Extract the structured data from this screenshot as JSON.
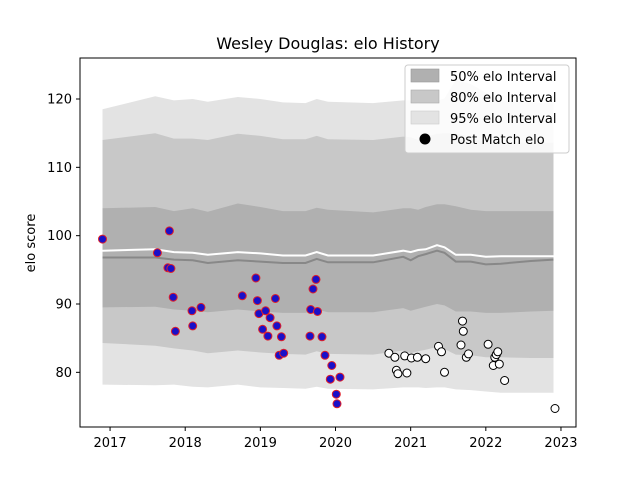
{
  "chart_data": {
    "type": "scatter",
    "title": "Wesley Douglas: elo History",
    "xlabel": "",
    "ylabel": "elo score",
    "xlim": [
      2016.6,
      2023.2
    ],
    "ylim": [
      72,
      126
    ],
    "xticks": [
      2017,
      2018,
      2019,
      2020,
      2021,
      2022,
      2023
    ],
    "yticks": [
      80,
      90,
      100,
      110,
      120
    ],
    "grid": false,
    "legend_position": "top-right",
    "legend": {
      "band50": "50% elo Interval",
      "band80": "80% elo Interval",
      "band95": "95% elo Interval",
      "points": "Post Match elo"
    },
    "colors": {
      "band50": "#b0b0b0",
      "band80": "#c8c8c8",
      "band95": "#e3e3e3",
      "median_line": "#888888",
      "mean_line": "#ffffff",
      "highlight_fill": "#1a10c8",
      "highlight_edge": "#e0202a",
      "recent_fill": "#ffffff",
      "recent_edge": "#000000"
    },
    "bands": {
      "x": [
        2016.9,
        2017.6,
        2017.85,
        2018.1,
        2018.3,
        2018.7,
        2019.0,
        2019.3,
        2019.6,
        2019.75,
        2019.9,
        2020.5,
        2020.9,
        2021.0,
        2021.1,
        2021.2,
        2021.35,
        2021.45,
        2021.6,
        2021.8,
        2022.0,
        2022.2,
        2022.6,
        2022.9
      ],
      "p95_hi": [
        118.5,
        120.4,
        119.8,
        120.0,
        119.6,
        120.3,
        120.0,
        119.5,
        119.4,
        120.0,
        119.6,
        119.4,
        119.8,
        119.8,
        119.3,
        119.8,
        119.7,
        120.1,
        122.8,
        122.2,
        120.9,
        119.7,
        119.5,
        119.4
      ],
      "p80_hi": [
        114.0,
        115.0,
        114.2,
        114.2,
        114.0,
        114.9,
        114.6,
        114.1,
        114.1,
        114.6,
        114.1,
        114.0,
        114.5,
        114.4,
        114.0,
        114.5,
        114.9,
        115.0,
        115.0,
        114.4,
        113.6,
        113.7,
        113.6,
        113.6
      ],
      "p50_hi": [
        104.0,
        104.2,
        103.6,
        104.0,
        103.5,
        104.7,
        104.2,
        103.6,
        103.6,
        104.1,
        103.8,
        103.4,
        104.0,
        104.0,
        103.8,
        104.2,
        104.6,
        104.6,
        104.3,
        103.8,
        103.6,
        103.6,
        103.6,
        103.6
      ],
      "mean": [
        97.8,
        98.0,
        97.6,
        97.5,
        97.2,
        97.6,
        97.4,
        97.1,
        97.1,
        97.6,
        97.1,
        97.1,
        97.8,
        97.6,
        97.9,
        98.0,
        98.6,
        98.3,
        97.2,
        97.2,
        96.9,
        97.0,
        97.0,
        97.0
      ],
      "median": [
        96.8,
        96.8,
        96.5,
        96.4,
        96.0,
        96.4,
        96.2,
        96.0,
        96.0,
        96.6,
        96.1,
        96.1,
        96.9,
        96.4,
        97.0,
        97.3,
        97.8,
        97.5,
        96.2,
        96.2,
        95.8,
        95.9,
        96.3,
        96.5
      ],
      "p50_lo": [
        89.5,
        89.6,
        89.2,
        89.0,
        88.8,
        89.2,
        88.9,
        88.7,
        88.7,
        89.2,
        88.8,
        88.8,
        89.4,
        89.0,
        89.3,
        89.6,
        90.0,
        89.8,
        88.9,
        88.9,
        88.7,
        88.7,
        88.9,
        89.0
      ],
      "p80_lo": [
        84.3,
        83.9,
        83.5,
        83.2,
        82.8,
        83.2,
        82.9,
        82.7,
        82.6,
        83.1,
        82.7,
        82.6,
        83.2,
        82.8,
        83.1,
        83.3,
        83.7,
        83.4,
        82.6,
        82.5,
        82.2,
        82.2,
        82.1,
        82.1
      ],
      "p95_lo": [
        78.2,
        78.1,
        78.2,
        77.9,
        77.8,
        78.2,
        77.8,
        77.7,
        77.6,
        77.9,
        77.6,
        77.5,
        77.8,
        77.8,
        77.8,
        77.7,
        77.8,
        77.8,
        77.5,
        77.4,
        77.2,
        77.0,
        77.0,
        77.0
      ]
    },
    "series": [
      {
        "name": "Post Match elo",
        "style": "highlight",
        "points": [
          [
            2016.9,
            99.5
          ],
          [
            2017.63,
            97.5
          ],
          [
            2017.77,
            95.3
          ],
          [
            2017.79,
            100.7
          ],
          [
            2017.81,
            95.2
          ],
          [
            2017.84,
            91.0
          ],
          [
            2017.87,
            86.0
          ],
          [
            2018.09,
            89.0
          ],
          [
            2018.1,
            86.8
          ],
          [
            2018.21,
            89.5
          ],
          [
            2018.76,
            91.2
          ],
          [
            2018.94,
            93.8
          ],
          [
            2018.96,
            90.5
          ],
          [
            2018.98,
            88.6
          ],
          [
            2019.03,
            86.3
          ],
          [
            2019.07,
            89.0
          ],
          [
            2019.1,
            85.3
          ],
          [
            2019.13,
            88.0
          ],
          [
            2019.2,
            90.8
          ],
          [
            2019.22,
            86.8
          ],
          [
            2019.25,
            82.5
          ],
          [
            2019.28,
            85.2
          ],
          [
            2019.31,
            82.8
          ],
          [
            2019.66,
            85.3
          ],
          [
            2019.67,
            89.2
          ],
          [
            2019.7,
            92.2
          ],
          [
            2019.74,
            93.6
          ],
          [
            2019.76,
            88.9
          ],
          [
            2019.82,
            85.2
          ],
          [
            2019.86,
            82.5
          ],
          [
            2019.93,
            79.0
          ],
          [
            2019.95,
            81.0
          ],
          [
            2020.01,
            76.8
          ],
          [
            2020.02,
            75.4
          ],
          [
            2020.06,
            79.3
          ]
        ]
      },
      {
        "name": "Post Match elo",
        "style": "recent",
        "points": [
          [
            2020.71,
            82.8
          ],
          [
            2020.79,
            82.2
          ],
          [
            2020.81,
            80.3
          ],
          [
            2020.83,
            79.8
          ],
          [
            2020.92,
            82.4
          ],
          [
            2020.95,
            79.9
          ],
          [
            2021.01,
            82.1
          ],
          [
            2021.09,
            82.2
          ],
          [
            2021.2,
            82.0
          ],
          [
            2021.37,
            83.8
          ],
          [
            2021.41,
            83.0
          ],
          [
            2021.45,
            80.0
          ],
          [
            2021.67,
            84.0
          ],
          [
            2021.69,
            87.5
          ],
          [
            2021.7,
            86.0
          ],
          [
            2021.74,
            82.2
          ],
          [
            2021.77,
            82.7
          ],
          [
            2022.03,
            84.1
          ],
          [
            2022.1,
            81.0
          ],
          [
            2022.12,
            82.2
          ],
          [
            2022.14,
            82.6
          ],
          [
            2022.16,
            83.0
          ],
          [
            2022.18,
            81.2
          ],
          [
            2022.25,
            78.8
          ],
          [
            2022.92,
            74.7
          ]
        ]
      }
    ]
  }
}
